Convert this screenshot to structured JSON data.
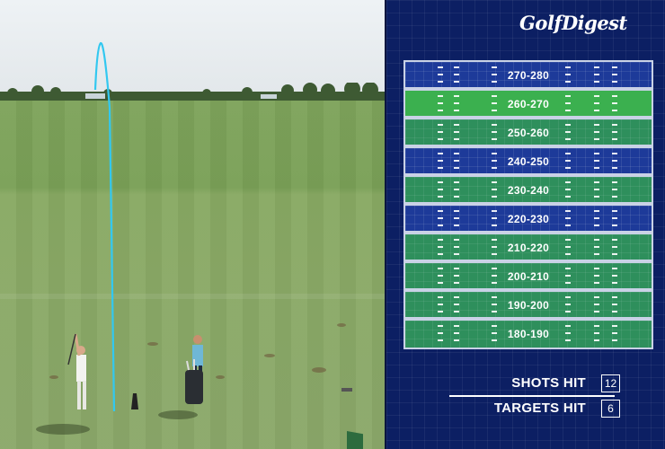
{
  "panel": {
    "logo_text": "GolfDigest",
    "yardage_bands": [
      {
        "label": "270-280",
        "color": "blue"
      },
      {
        "label": "260-270",
        "color": "bright"
      },
      {
        "label": "250-260",
        "color": "green"
      },
      {
        "label": "240-250",
        "color": "blue"
      },
      {
        "label": "230-240",
        "color": "green"
      },
      {
        "label": "220-230",
        "color": "blue"
      },
      {
        "label": "210-220",
        "color": "green"
      },
      {
        "label": "200-210",
        "color": "green"
      },
      {
        "label": "190-200",
        "color": "green"
      },
      {
        "label": "180-190",
        "color": "green"
      }
    ],
    "shots_hit": {
      "label": "SHOTS HIT",
      "value": "12"
    },
    "targets_hit": {
      "label": "TARGETS HIT",
      "value": "6"
    }
  },
  "colors": {
    "panel_bg": "#0c1f63",
    "band_blue": "#1d3a99",
    "band_green": "#2e8f5c",
    "band_bright": "#3bb04f",
    "shot_tracer": "#32c8f0"
  }
}
